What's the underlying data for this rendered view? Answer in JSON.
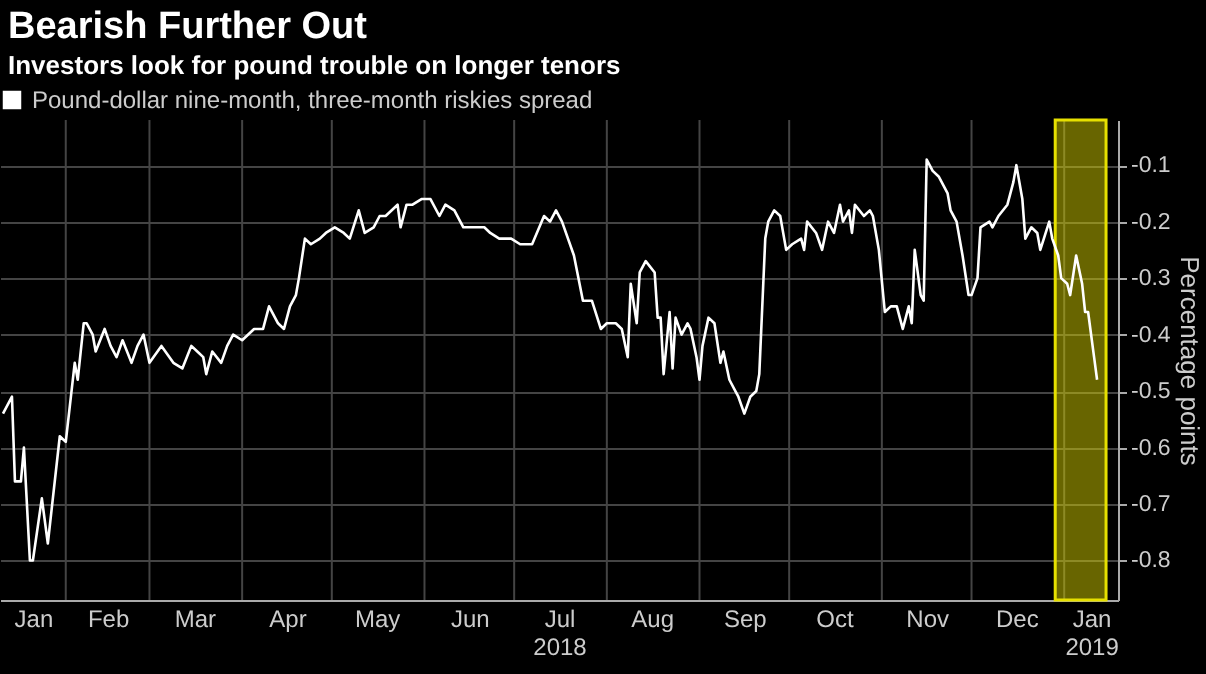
{
  "chart_data": {
    "type": "line",
    "title": "Bearish Further Out",
    "subtitle": "Investors look for pound trouble on longer tenors",
    "ylabel": "Percentage points",
    "series": [
      {
        "name": "Pound-dollar nine-month, three-month riskies spread",
        "color": "#ffffff",
        "x": [
          "2018-01-11",
          "2018-01-14",
          "2018-01-15",
          "2018-01-17",
          "2018-01-18",
          "2018-01-20",
          "2018-01-21",
          "2018-01-24",
          "2018-01-26",
          "2018-01-30",
          "2018-02-01",
          "2018-02-04",
          "2018-02-05",
          "2018-02-07",
          "2018-02-08",
          "2018-02-10",
          "2018-02-11",
          "2018-02-14",
          "2018-02-16",
          "2018-02-18",
          "2018-02-20",
          "2018-02-23",
          "2018-02-25",
          "2018-02-27",
          "2018-03-01",
          "2018-03-05",
          "2018-03-09",
          "2018-03-12",
          "2018-03-15",
          "2018-03-17",
          "2018-03-19",
          "2018-03-20",
          "2018-03-22",
          "2018-03-25",
          "2018-03-27",
          "2018-03-29",
          "2018-04-01",
          "2018-04-05",
          "2018-04-08",
          "2018-04-10",
          "2018-04-13",
          "2018-04-15",
          "2018-04-17",
          "2018-04-19",
          "2018-04-20",
          "2018-04-22",
          "2018-04-24",
          "2018-04-27",
          "2018-04-29",
          "2018-05-02",
          "2018-05-05",
          "2018-05-07",
          "2018-05-10",
          "2018-05-12",
          "2018-05-15",
          "2018-05-17",
          "2018-05-19",
          "2018-05-23",
          "2018-05-24",
          "2018-05-26",
          "2018-05-28",
          "2018-05-31",
          "2018-06-03",
          "2018-06-06",
          "2018-06-08",
          "2018-06-11",
          "2018-06-14",
          "2018-06-17",
          "2018-06-21",
          "2018-06-23",
          "2018-06-26",
          "2018-06-30",
          "2018-07-03",
          "2018-07-07",
          "2018-07-11",
          "2018-07-13",
          "2018-07-15",
          "2018-07-17",
          "2018-07-21",
          "2018-07-24",
          "2018-07-27",
          "2018-07-30",
          "2018-08-01",
          "2018-08-04",
          "2018-08-06",
          "2018-08-08",
          "2018-08-09",
          "2018-08-11",
          "2018-08-12",
          "2018-08-14",
          "2018-08-17",
          "2018-08-18",
          "2018-08-19",
          "2018-08-20",
          "2018-08-22",
          "2018-08-23",
          "2018-08-24",
          "2018-08-26",
          "2018-08-28",
          "2018-08-29",
          "2018-08-31",
          "2018-09-01",
          "2018-09-02",
          "2018-09-04",
          "2018-09-06",
          "2018-09-08",
          "2018-09-09",
          "2018-09-11",
          "2018-09-13",
          "2018-09-14",
          "2018-09-16",
          "2018-09-18",
          "2018-09-20",
          "2018-09-21",
          "2018-09-23",
          "2018-09-24",
          "2018-09-26",
          "2018-09-28",
          "2018-09-30",
          "2018-10-02",
          "2018-10-05",
          "2018-10-06",
          "2018-10-07",
          "2018-10-10",
          "2018-10-12",
          "2018-10-14",
          "2018-10-16",
          "2018-10-18",
          "2018-10-19",
          "2018-10-21",
          "2018-10-22",
          "2018-10-23",
          "2018-10-26",
          "2018-10-28",
          "2018-10-29",
          "2018-10-31",
          "2018-11-02",
          "2018-11-04",
          "2018-11-06",
          "2018-11-08",
          "2018-11-10",
          "2018-11-11",
          "2018-11-12",
          "2018-11-14",
          "2018-11-15",
          "2018-11-16",
          "2018-11-18",
          "2018-11-20",
          "2018-11-23",
          "2018-11-24",
          "2018-11-26",
          "2018-11-28",
          "2018-11-30",
          "2018-12-01",
          "2018-12-03",
          "2018-12-04",
          "2018-12-07",
          "2018-12-08",
          "2018-12-10",
          "2018-12-13",
          "2018-12-15",
          "2018-12-16",
          "2018-12-18",
          "2018-12-19",
          "2018-12-21",
          "2018-12-23",
          "2018-12-24",
          "2018-12-27",
          "2018-12-28",
          "2018-12-30",
          "2018-12-31",
          "2019-01-02",
          "2019-01-03",
          "2019-01-05",
          "2019-01-07",
          "2019-01-08",
          "2019-01-09",
          "2019-01-11",
          "2019-01-12"
        ],
        "values": [
          -0.54,
          -0.51,
          -0.66,
          -0.66,
          -0.6,
          -0.8,
          -0.8,
          -0.69,
          -0.77,
          -0.58,
          -0.59,
          -0.45,
          -0.48,
          -0.38,
          -0.38,
          -0.4,
          -0.43,
          -0.39,
          -0.42,
          -0.44,
          -0.41,
          -0.45,
          -0.42,
          -0.4,
          -0.45,
          -0.42,
          -0.45,
          -0.46,
          -0.42,
          -0.43,
          -0.44,
          -0.47,
          -0.43,
          -0.45,
          -0.42,
          -0.4,
          -0.41,
          -0.39,
          -0.39,
          -0.35,
          -0.38,
          -0.39,
          -0.35,
          -0.33,
          -0.3,
          -0.23,
          -0.24,
          -0.23,
          -0.22,
          -0.21,
          -0.22,
          -0.23,
          -0.18,
          -0.22,
          -0.21,
          -0.19,
          -0.19,
          -0.17,
          -0.21,
          -0.17,
          -0.17,
          -0.16,
          -0.16,
          -0.19,
          -0.17,
          -0.18,
          -0.21,
          -0.21,
          -0.21,
          -0.22,
          -0.23,
          -0.23,
          -0.24,
          -0.24,
          -0.19,
          -0.2,
          -0.18,
          -0.2,
          -0.26,
          -0.34,
          -0.34,
          -0.39,
          -0.38,
          -0.38,
          -0.39,
          -0.44,
          -0.31,
          -0.38,
          -0.29,
          -0.27,
          -0.29,
          -0.37,
          -0.37,
          -0.47,
          -0.36,
          -0.46,
          -0.37,
          -0.4,
          -0.38,
          -0.39,
          -0.44,
          -0.48,
          -0.42,
          -0.37,
          -0.38,
          -0.45,
          -0.43,
          -0.48,
          -0.5,
          -0.51,
          -0.54,
          -0.51,
          -0.5,
          -0.47,
          -0.23,
          -0.2,
          -0.18,
          -0.19,
          -0.25,
          -0.24,
          -0.23,
          -0.25,
          -0.2,
          -0.22,
          -0.25,
          -0.2,
          -0.22,
          -0.17,
          -0.2,
          -0.18,
          -0.22,
          -0.17,
          -0.19,
          -0.18,
          -0.19,
          -0.25,
          -0.36,
          -0.35,
          -0.35,
          -0.39,
          -0.35,
          -0.38,
          -0.25,
          -0.33,
          -0.34,
          -0.09,
          -0.11,
          -0.12,
          -0.15,
          -0.18,
          -0.2,
          -0.26,
          -0.33,
          -0.33,
          -0.3,
          -0.21,
          -0.2,
          -0.21,
          -0.19,
          -0.17,
          -0.13,
          -0.1,
          -0.16,
          -0.23,
          -0.21,
          -0.22,
          -0.25,
          -0.2,
          -0.23,
          -0.26,
          -0.3,
          -0.31,
          -0.33,
          -0.26,
          -0.31,
          -0.36,
          -0.36,
          -0.44,
          -0.48
        ]
      }
    ],
    "xlim": [
      "2018-01-10",
      "2019-01-19"
    ],
    "xticks": [
      {
        "value": "2018-01-21",
        "label": "Jan"
      },
      {
        "value": "2018-02-01",
        "label": null
      },
      {
        "value": "2018-02-15",
        "label": "Feb"
      },
      {
        "value": "2018-03-01",
        "label": null
      },
      {
        "value": "2018-03-16",
        "label": "Mar"
      },
      {
        "value": "2018-04-01",
        "label": null
      },
      {
        "value": "2018-04-16",
        "label": "Apr"
      },
      {
        "value": "2018-05-01",
        "label": null
      },
      {
        "value": "2018-05-16",
        "label": "May"
      },
      {
        "value": "2018-06-01",
        "label": null
      },
      {
        "value": "2018-06-16",
        "label": "Jun"
      },
      {
        "value": "2018-07-01",
        "label": null
      },
      {
        "value": "2018-07-16",
        "label": "Jul\n2018"
      },
      {
        "value": "2018-08-01",
        "label": null
      },
      {
        "value": "2018-08-16",
        "label": "Aug"
      },
      {
        "value": "2018-09-01",
        "label": null
      },
      {
        "value": "2018-09-16",
        "label": "Sep"
      },
      {
        "value": "2018-10-01",
        "label": null
      },
      {
        "value": "2018-10-16",
        "label": "Oct"
      },
      {
        "value": "2018-11-01",
        "label": null
      },
      {
        "value": "2018-11-16",
        "label": "Nov"
      },
      {
        "value": "2018-12-01",
        "label": null
      },
      {
        "value": "2018-12-16",
        "label": "Dec"
      },
      {
        "value": "2019-01-01",
        "label": null
      },
      {
        "value": "2019-01-10",
        "label": "Jan\n2019"
      }
    ],
    "ylim": [
      -0.87,
      -0.02
    ],
    "yticks": [
      -0.1,
      -0.2,
      -0.3,
      -0.4,
      -0.5,
      -0.6,
      -0.7,
      -0.8
    ],
    "bands": [
      {
        "axis": "x",
        "from": "2018-12-29",
        "to": "2019-01-15",
        "color": "#e6e000"
      }
    ],
    "grid": true,
    "legend": "top left"
  }
}
